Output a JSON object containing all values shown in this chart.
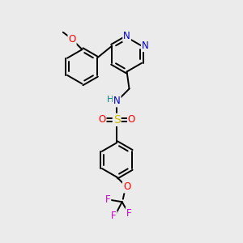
{
  "background_color": "#ebebeb",
  "bond_color": "#000000",
  "colors": {
    "N": "#0000cc",
    "O": "#ff0000",
    "S": "#ccbb00",
    "F": "#cc00cc",
    "H": "#008080",
    "C": "#000000"
  }
}
